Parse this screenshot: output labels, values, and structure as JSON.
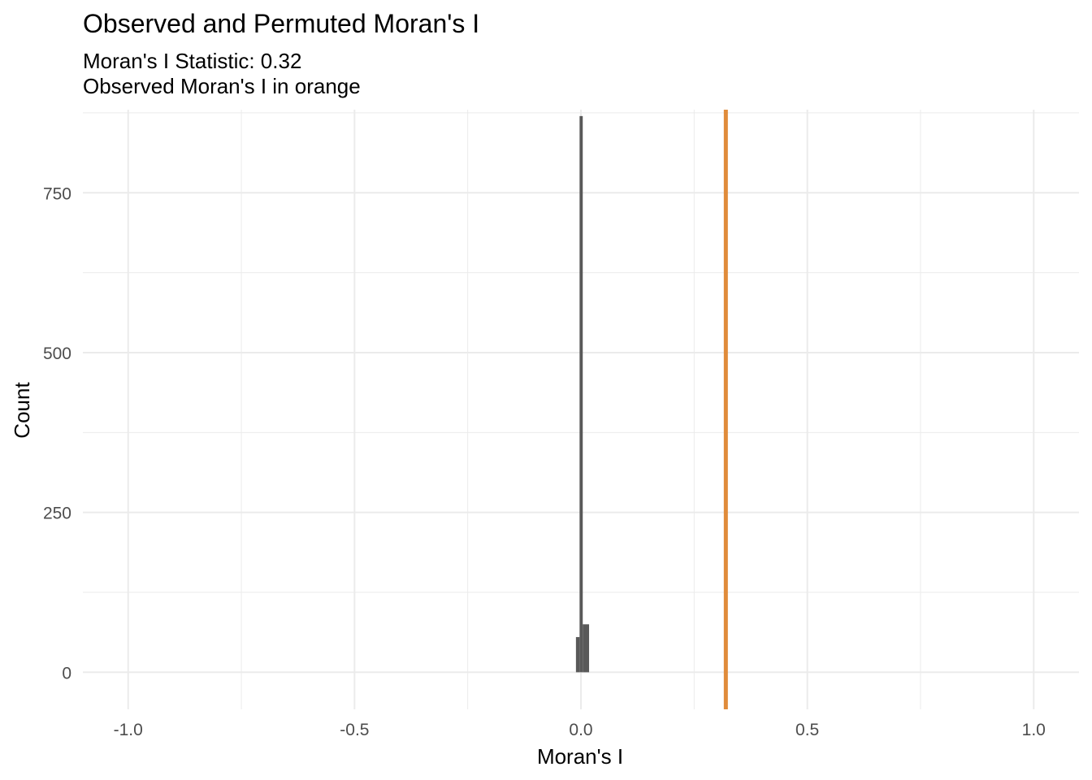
{
  "chart_data": {
    "type": "bar",
    "title": "Observed and Permuted Moran's I",
    "subtitle_lines": [
      "Moran's I Statistic: 0.32",
      "Observed Moran's I in orange"
    ],
    "xlabel": "Moran's I",
    "ylabel": "Count",
    "xlim": [
      -1.1,
      1.1
    ],
    "ylim": [
      -58,
      880
    ],
    "x_ticks": [
      -1.0,
      -0.5,
      0.0,
      0.5,
      1.0
    ],
    "x_tick_labels": [
      "-1.0",
      "-0.5",
      "0.0",
      "0.5",
      "1.0"
    ],
    "y_ticks": [
      0,
      250,
      500,
      750
    ],
    "y_tick_labels": [
      "0",
      "250",
      "500",
      "750"
    ],
    "grid": true,
    "bins": [
      {
        "x0": -0.011,
        "x1": -0.003,
        "count": 55
      },
      {
        "x0": -0.003,
        "x1": 0.004,
        "count": 870
      },
      {
        "x0": 0.004,
        "x1": 0.018,
        "count": 75
      }
    ],
    "observed_value": 0.32,
    "bar_color": "#595959",
    "observed_color": "#e08b3a",
    "grid_color": "#ebebeb"
  }
}
